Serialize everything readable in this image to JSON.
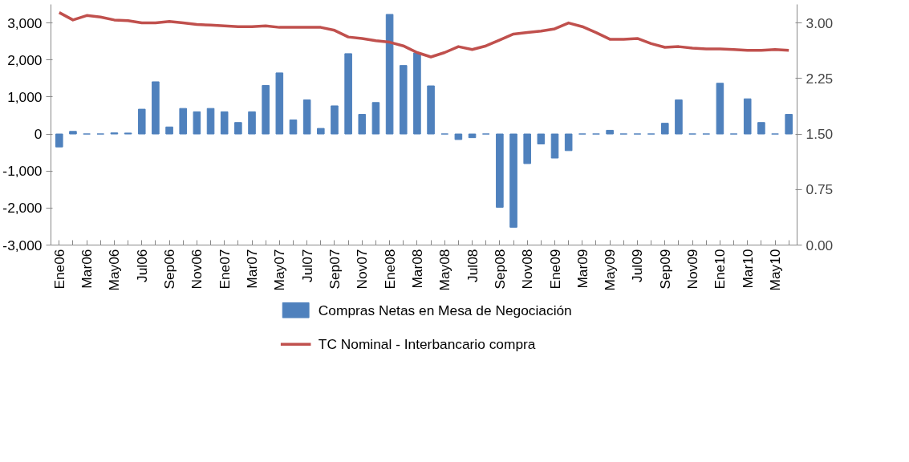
{
  "chart_data": {
    "type": "bar",
    "categories": [
      "Ene06",
      null,
      "Mar06",
      null,
      "May06",
      null,
      "Jul06",
      null,
      "Sep06",
      null,
      "Nov06",
      null,
      "Ene07",
      null,
      "Mar07",
      null,
      "May07",
      null,
      "Jul07",
      null,
      "Sep07",
      null,
      "Nov07",
      null,
      "Ene08",
      null,
      "Mar08",
      null,
      "May08",
      null,
      "Jul08",
      null,
      "Sep08",
      null,
      "Nov08",
      null,
      "Ene09",
      null,
      "Mar09",
      null,
      "May09",
      null,
      "Jul09",
      null,
      "Sep09",
      null,
      "Nov09",
      null,
      "Ene10",
      null,
      "Mar10",
      null,
      "May10",
      null
    ],
    "series": [
      {
        "name": "Compras Netas en Mesa de Negociación",
        "color": "#4f81bd",
        "values": [
          -350,
          70,
          0,
          0,
          30,
          25,
          670,
          1410,
          190,
          690,
          600,
          690,
          600,
          310,
          600,
          1310,
          1650,
          380,
          920,
          150,
          760,
          2170,
          530,
          850,
          3230,
          1850,
          2190,
          1300,
          0,
          -150,
          -100,
          0,
          -1980,
          -2520,
          -800,
          -270,
          -650,
          -450,
          0,
          0,
          100,
          0,
          0,
          0,
          290,
          920,
          0,
          0,
          1370,
          0,
          950,
          310,
          0,
          530
        ]
      },
      {
        "name": "TC Nominal - Interbancario compra",
        "type": "line",
        "axis": "y2",
        "color": "#c0504d",
        "values": [
          3.14,
          3.04,
          3.1,
          3.08,
          3.04,
          3.03,
          3.0,
          3.0,
          3.02,
          3.0,
          2.98,
          2.97,
          2.96,
          2.95,
          2.95,
          2.96,
          2.94,
          2.94,
          2.94,
          2.94,
          2.9,
          2.81,
          2.79,
          2.76,
          2.74,
          2.69,
          2.6,
          2.54,
          2.6,
          2.68,
          2.64,
          2.69,
          2.77,
          2.85,
          2.87,
          2.89,
          2.92,
          3.0,
          2.95,
          2.87,
          2.78,
          2.78,
          2.79,
          2.72,
          2.67,
          2.68,
          2.66,
          2.65,
          2.65,
          2.64,
          2.63,
          2.63,
          2.64,
          2.63
        ]
      }
    ],
    "ylim": [
      -3000,
      3500
    ],
    "yticks": [
      {
        "value": -3000,
        "label": "-3,000"
      },
      {
        "value": -2000,
        "label": "-2,000"
      },
      {
        "value": -1000,
        "label": "-1,000"
      },
      0,
      {
        "value": 1000,
        "label": "1,000"
      },
      {
        "value": 2000,
        "label": "2,000"
      },
      {
        "value": 3000,
        "label": "3,000"
      }
    ],
    "y2lim": [
      0,
      3.25
    ],
    "y2ticks": [
      {
        "value": 0,
        "label": "0.00"
      },
      {
        "value": 0.75,
        "label": "0.75"
      },
      {
        "value": 1.5,
        "label": "1.50"
      },
      {
        "value": 2.25,
        "label": "2.25"
      },
      {
        "value": 3.0,
        "label": "3.00"
      }
    ],
    "grid": false,
    "legend": "bottom"
  }
}
